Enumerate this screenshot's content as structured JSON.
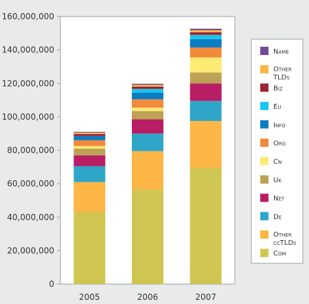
{
  "chart_data": {
    "type": "bar",
    "stacked": true,
    "title": "",
    "xlabel": "",
    "ylabel": "",
    "categories": [
      "2005",
      "2006",
      "2007"
    ],
    "ylim": [
      0,
      160000000
    ],
    "yticks": [
      0,
      20000000,
      40000000,
      60000000,
      80000000,
      100000000,
      120000000,
      140000000,
      160000000
    ],
    "ytick_labels": [
      "0",
      "20,000,000",
      "40,000,000",
      "60,000,000",
      "80,000,000",
      "100,000,000",
      "120,000,000",
      "140,000,000",
      "160,000,000"
    ],
    "grid": false,
    "legend_position": "right",
    "series": [
      {
        "name": "Com",
        "color": "#cfc651",
        "values": [
          43000000,
          56500000,
          69500000
        ]
      },
      {
        "name": "Other ccTLDs",
        "color": "#fbb645",
        "values": [
          18000000,
          23000000,
          28000000
        ]
      },
      {
        "name": "De",
        "color": "#2fa6c8",
        "values": [
          9500000,
          10500000,
          12000000
        ]
      },
      {
        "name": "Net",
        "color": "#b91d63",
        "values": [
          6500000,
          8500000,
          10500000
        ]
      },
      {
        "name": "Uk",
        "color": "#bda155",
        "values": [
          4000000,
          5000000,
          6500000
        ]
      },
      {
        "name": "Cn",
        "color": "#fdeb74",
        "values": [
          1500000,
          2000000,
          9000000
        ]
      },
      {
        "name": "Org",
        "color": "#f28a3e",
        "values": [
          3500000,
          5000000,
          6000000
        ]
      },
      {
        "name": "Info",
        "color": "#0a7cc2",
        "values": [
          2500000,
          4000000,
          5000000
        ]
      },
      {
        "name": "Eu",
        "color": "#18c6ee",
        "values": [
          0,
          2200000,
          2500000
        ]
      },
      {
        "name": "Biz",
        "color": "#9a2531",
        "values": [
          1200000,
          1400000,
          1600000
        ]
      },
      {
        "name": "Other TLDs",
        "color": "#fbb645",
        "values": [
          800000,
          1000000,
          1200000
        ]
      },
      {
        "name": "Name",
        "color": "#6f4a9b",
        "values": [
          500000,
          700000,
          900000
        ]
      }
    ],
    "legend_order": [
      "Name",
      "Other TLDs",
      "Biz",
      "Eu",
      "Info",
      "Org",
      "Cn",
      "Uk",
      "Net",
      "De",
      "Other ccTLDs",
      "Com"
    ]
  }
}
